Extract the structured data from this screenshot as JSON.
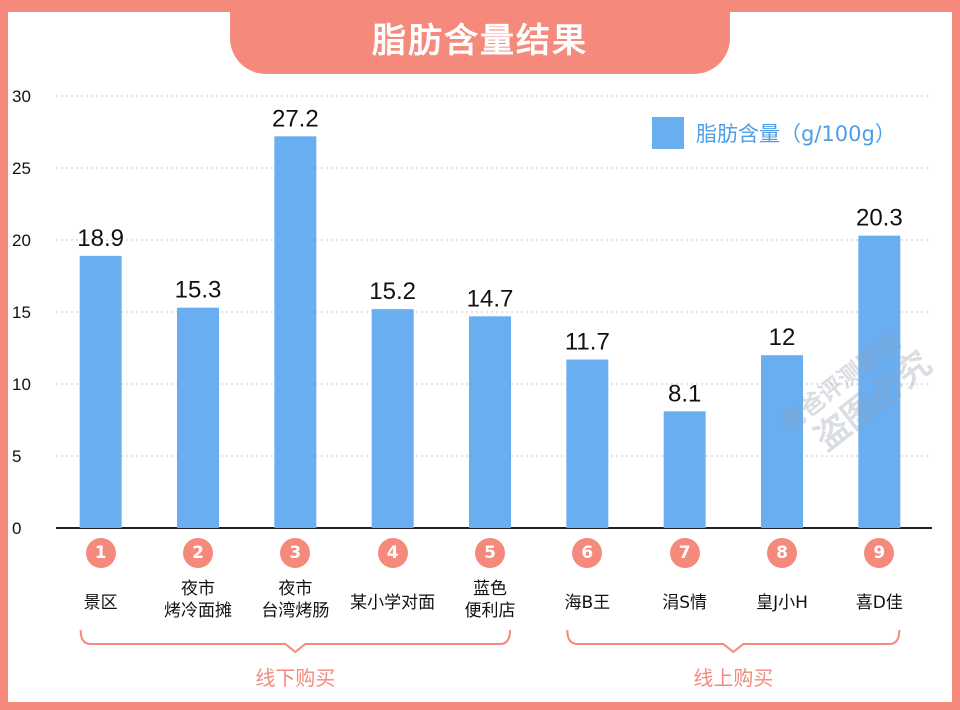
{
  "title": "脂肪含量结果",
  "legend": {
    "label": "脂肪含量（g/100g）",
    "color": "#6aaef2"
  },
  "chart_data": {
    "type": "bar",
    "title": "脂肪含量结果",
    "xlabel": "",
    "ylabel": "",
    "ylim": [
      0,
      30
    ],
    "yticks": [
      0,
      5,
      10,
      15,
      20,
      25,
      30
    ],
    "grid": true,
    "legend_position": "top-right",
    "categories": [
      "景区",
      "夜市 烤冷面摊",
      "夜市 台湾烤肠",
      "某小学对面",
      "蓝色 便利店",
      "海B王",
      "涓S情",
      "皇J小H",
      "喜D佳"
    ],
    "category_lines": [
      [
        "景区"
      ],
      [
        "夜市",
        "烤冷面摊"
      ],
      [
        "夜市",
        "台湾烤肠"
      ],
      [
        "某小学对面"
      ],
      [
        "蓝色",
        "便利店"
      ],
      [
        "海B王"
      ],
      [
        "涓S情"
      ],
      [
        "皇J小H"
      ],
      [
        "喜D佳"
      ]
    ],
    "numbers": [
      "1",
      "2",
      "3",
      "4",
      "5",
      "6",
      "7",
      "8",
      "9"
    ],
    "series": [
      {
        "name": "脂肪含量（g/100g）",
        "values": [
          18.9,
          15.3,
          27.2,
          15.2,
          14.7,
          11.7,
          8.1,
          12,
          20.3
        ]
      }
    ],
    "value_labels": [
      "18.9",
      "15.3",
      "27.2",
      "15.2",
      "14.7",
      "11.7",
      "8.1",
      "12",
      "20.3"
    ],
    "groups": [
      {
        "label": "线下购买",
        "from": 0,
        "to": 4
      },
      {
        "label": "线上购买",
        "from": 5,
        "to": 8
      }
    ]
  },
  "colors": {
    "accent": "#f4897c",
    "bar": "#6aaef2",
    "grid": "#c8c8c8",
    "axis": "#222222"
  },
  "watermark": {
    "line1": "老爸评测原创",
    "line2": "盗图必究"
  }
}
